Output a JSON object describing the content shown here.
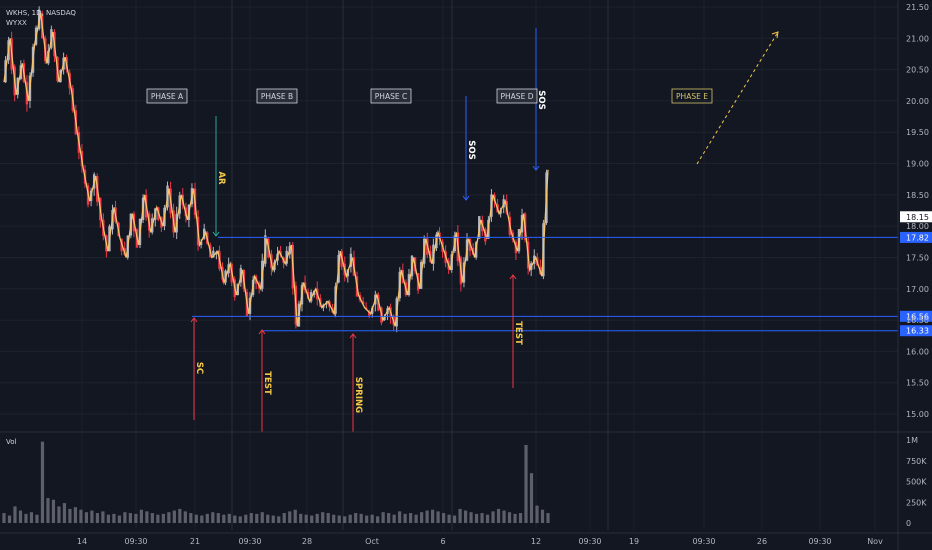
{
  "symbol": {
    "title": "WKHS, 1D, NASDAQ",
    "subtitle": "WYXX"
  },
  "colors": {
    "background": "#131722",
    "grid": "#1e222d",
    "candle_up": "#b2b5be",
    "candle_down": "#f23645",
    "zigzag": "#f7c36b",
    "level": "#2962ff",
    "volume": "#5d606b",
    "text": "#b2b5be"
  },
  "chart_data": {
    "type": "candlestick",
    "y_axis": {
      "range": [
        14.7,
        21.6
      ],
      "ticks": [
        "21.50",
        "21.00",
        "20.50",
        "20.00",
        "19.50",
        "19.00",
        "18.50",
        "18.00",
        "17.50",
        "17.00",
        "16.50",
        "16.00",
        "15.50",
        "15.00"
      ]
    },
    "x_axis": {
      "ticks": [
        "14",
        "09:30",
        "21",
        "09:30",
        "28",
        "Oct",
        "6",
        "12",
        "09:30",
        "19",
        "09:30",
        "26",
        "09:30",
        "Nov"
      ]
    },
    "current_price": "18.15",
    "levels": [
      {
        "value": 17.82,
        "label": "17.82"
      },
      {
        "value": 16.56,
        "label": "16.56"
      },
      {
        "value": 16.33,
        "label": "16.33"
      }
    ],
    "phases": [
      {
        "label": "PHASE A",
        "color": "#d1d4dc"
      },
      {
        "label": "PHASE B",
        "color": "#d1d4dc"
      },
      {
        "label": "PHASE C",
        "color": "#d1d4dc"
      },
      {
        "label": "PHASE D",
        "color": "#d1d4dc"
      },
      {
        "label": "PHASE E",
        "color": "#d4c46a"
      }
    ],
    "annotations": [
      {
        "label": "SC",
        "color": "#f7c948",
        "arrow": "#f23645",
        "direction": "up"
      },
      {
        "label": "AR",
        "color": "#f7c948",
        "arrow": "#26a69a",
        "direction": "down"
      },
      {
        "label": "TEST",
        "color": "#f7c948",
        "arrow": "#f23645",
        "direction": "up"
      },
      {
        "label": "SPRING",
        "color": "#f7c948",
        "arrow": "#f23645",
        "direction": "up"
      },
      {
        "label": "SOS",
        "color": "#ffffff",
        "arrow": "#2962ff",
        "direction": "down"
      },
      {
        "label": "TEST",
        "color": "#f7c948",
        "arrow": "#f23645",
        "direction": "up"
      },
      {
        "label": "SOS",
        "color": "#ffffff",
        "arrow": "#2962ff",
        "direction": "down"
      }
    ],
    "zigzag": [
      20.3,
      21.0,
      20.1,
      20.6,
      20.0,
      20.9,
      21.4,
      20.6,
      21.1,
      20.3,
      20.7,
      20.2,
      19.5,
      18.9,
      18.4,
      18.8,
      18.1,
      17.6,
      18.3,
      17.8,
      17.5,
      18.2,
      17.7,
      18.5,
      17.9,
      18.3,
      18.0,
      18.6,
      17.9,
      18.5,
      18.1,
      18.6,
      17.7,
      17.9,
      17.5,
      17.6,
      17.1,
      17.4,
      16.9,
      17.3,
      16.6,
      17.2,
      17.0,
      17.8,
      17.3,
      17.6,
      17.4,
      17.7,
      16.4,
      17.1,
      16.8,
      17.0,
      16.7,
      16.8,
      16.6,
      17.6,
      17.2,
      17.5,
      16.9,
      16.7,
      16.6,
      16.9,
      16.5,
      16.7,
      16.4,
      17.3,
      16.9,
      17.5,
      17.0,
      17.8,
      17.4,
      17.9,
      17.6,
      17.3,
      17.9,
      17.1,
      17.8,
      17.5,
      18.1,
      17.8,
      18.5,
      18.2,
      18.4,
      17.9,
      17.6,
      18.2,
      17.3,
      17.5,
      17.2,
      18.9
    ],
    "volume": {
      "axis_ticks": [
        "1M",
        "750K",
        "500K",
        "250K",
        "0"
      ],
      "max": 1000000,
      "values": [
        120,
        90,
        200,
        150,
        110,
        130,
        100,
        980,
        300,
        280,
        200,
        240,
        170,
        190,
        160,
        130,
        150,
        120,
        140,
        100,
        110,
        90,
        130,
        120,
        110,
        160,
        140,
        120,
        100,
        110,
        130,
        150,
        170,
        140,
        120,
        100,
        90,
        110,
        130,
        120,
        100,
        110,
        90,
        80,
        100,
        120,
        110,
        130,
        100,
        90,
        80,
        120,
        140,
        160,
        110,
        100,
        90,
        110,
        130,
        120,
        100,
        90,
        80,
        100,
        120,
        110,
        90,
        100,
        80,
        130,
        120,
        100,
        140,
        110,
        120,
        100,
        130,
        150,
        160,
        140,
        120,
        100,
        90,
        170,
        150,
        130,
        110,
        120,
        100,
        140,
        170,
        150,
        130,
        110,
        120,
        940,
        600,
        210,
        160,
        120
      ]
    },
    "volume_label": "Vol"
  }
}
